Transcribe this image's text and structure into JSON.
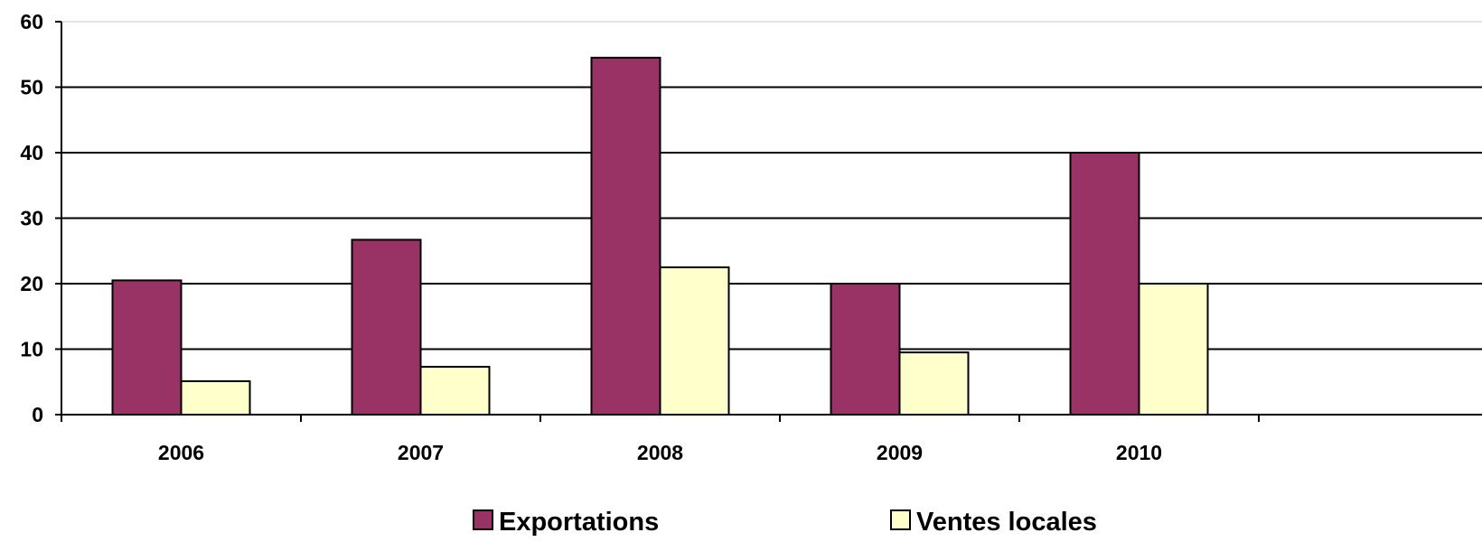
{
  "chart_data": {
    "type": "bar",
    "categories": [
      "2006",
      "2007",
      "2008",
      "2009",
      "2010"
    ],
    "series": [
      {
        "name": "Exportations",
        "values": [
          20.5,
          26.7,
          54.5,
          20,
          40
        ],
        "color": "#993366"
      },
      {
        "name": "Ventes locales",
        "values": [
          5.1,
          7.3,
          22.5,
          9.5,
          20
        ],
        "color": "#FFFFCC"
      }
    ],
    "yticks": [
      "0",
      "10",
      "20",
      "30",
      "40",
      "50",
      "60"
    ],
    "ylim": [
      0,
      60
    ],
    "grid": true,
    "legend": "bottom",
    "title": "",
    "xlabel": "",
    "ylabel": ""
  }
}
